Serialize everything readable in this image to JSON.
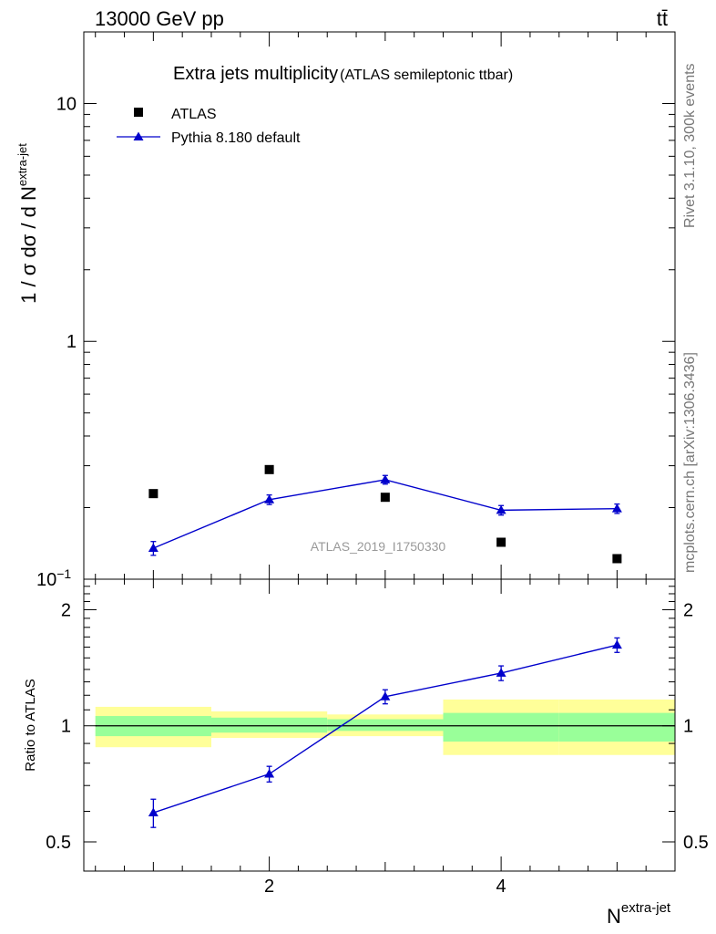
{
  "header": {
    "left": "13000 GeV pp",
    "right": "tt̄"
  },
  "side_label_1": "Rivet 3.1.10,  300k events",
  "side_label_2": "mcplots.cern.ch [arXiv:1306.3436]",
  "colors": {
    "mc": "#0000cc",
    "band_inner": "#99ff99",
    "band_outer": "#ffff99",
    "data": "#000000"
  },
  "chart_data": {
    "type": "scatter",
    "title": "Extra jets multiplicity",
    "subtitle": "(ATLAS semileptonic ttbar)",
    "watermark": "ATLAS_2019_I1750330",
    "xlabel": "N",
    "xlabel_sup": "extra-jet",
    "ylabel": "1 / σ dσ / d N",
    "ylabel_sup": "extra-jet",
    "ratio_ylabel": "Ratio to ATLAS",
    "xlim": [
      0.4,
      5.5
    ],
    "ylim": [
      0.1,
      20
    ],
    "yscale": "log",
    "ratio_ylim": [
      0.42,
      2.4
    ],
    "main_ticks": [
      {
        "v": 10,
        "label": "10"
      },
      {
        "v": 1,
        "label": "1"
      },
      {
        "v": 0.1,
        "label": "10",
        "sup": "−1"
      }
    ],
    "ratio_ticks": [
      {
        "v": 2,
        "label": "2"
      },
      {
        "v": 1,
        "label": "1"
      },
      {
        "v": 0.5,
        "label": "0.5"
      }
    ],
    "x_ticks": [
      {
        "v": 2,
        "label": "2"
      },
      {
        "v": 4,
        "label": "4"
      }
    ],
    "legend": [
      {
        "name": "ATLAS",
        "marker": "square"
      },
      {
        "name": "Pythia 8.180 default",
        "marker": "triangle"
      }
    ],
    "bins": [
      {
        "lo": 0.5,
        "hi": 1.5
      },
      {
        "lo": 1.5,
        "hi": 2.5
      },
      {
        "lo": 2.5,
        "hi": 3.5
      },
      {
        "lo": 3.5,
        "hi": 4.5
      },
      {
        "lo": 4.5,
        "hi": 5.5
      }
    ],
    "series": [
      {
        "name": "ATLAS",
        "x": [
          1,
          2,
          3,
          4,
          5
        ],
        "values": [
          0.229,
          0.289,
          0.221,
          0.143,
          0.122
        ]
      },
      {
        "name": "Pythia 8.180 default",
        "x": [
          1,
          2,
          3,
          4,
          5
        ],
        "values": [
          0.135,
          0.216,
          0.262,
          0.195,
          0.198
        ],
        "err": [
          0.009,
          0.01,
          0.011,
          0.009,
          0.009
        ]
      }
    ],
    "ratio": {
      "x": [
        1,
        2,
        3,
        4,
        5
      ],
      "values": [
        0.595,
        0.75,
        1.19,
        1.37,
        1.62
      ],
      "err": [
        0.05,
        0.035,
        0.05,
        0.06,
        0.07
      ],
      "band_inner": [
        [
          0.94,
          1.06
        ],
        [
          0.96,
          1.05
        ],
        [
          0.97,
          1.04
        ],
        [
          0.91,
          1.08
        ],
        [
          0.91,
          1.08
        ]
      ],
      "band_outer": [
        [
          0.88,
          1.12
        ],
        [
          0.93,
          1.09
        ],
        [
          0.94,
          1.07
        ],
        [
          0.84,
          1.17
        ],
        [
          0.84,
          1.17
        ]
      ]
    }
  }
}
